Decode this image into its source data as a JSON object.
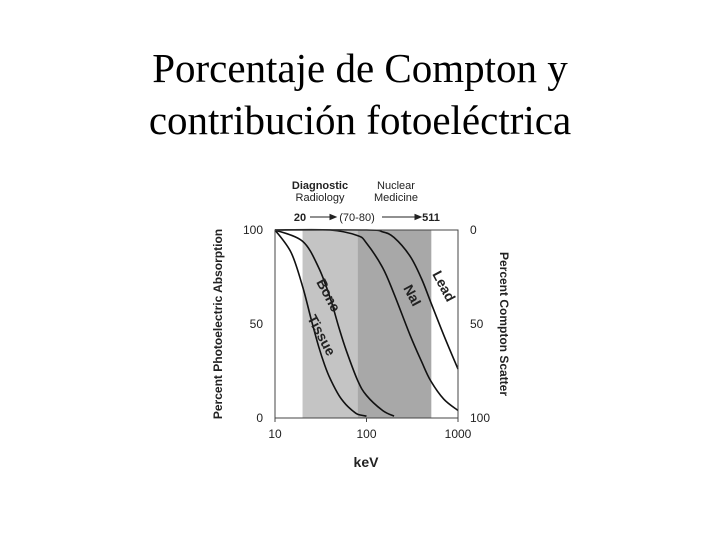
{
  "slide": {
    "title_line1": "Porcentaje de Compton y",
    "title_line2": "contribución fotoeléctrica"
  },
  "chart_data": {
    "type": "line",
    "xlabel": "keV",
    "ylabel_left": "Percent Photoelectric Absorption",
    "ylabel_right": "Percent Compton Scatter",
    "x_scale": "log",
    "xlim": [
      10,
      1000
    ],
    "ylim": [
      0,
      100
    ],
    "x_ticks": [
      "10",
      "100",
      "1000"
    ],
    "y_ticks_left": [
      "100",
      "50",
      "0"
    ],
    "y_ticks_right": [
      "0",
      "50",
      "100"
    ],
    "bands": [
      {
        "name_line1": "Diagnostic",
        "name_line2": "Radiology",
        "range": [
          20,
          80
        ],
        "color": "#c4c4c4"
      },
      {
        "name_line1": "Nuclear",
        "name_line2": "Medicine",
        "range": [
          80,
          511
        ],
        "color": "#a8a8a8"
      }
    ],
    "band_marks": {
      "left": "20",
      "middle": "(70-80)",
      "right": "511"
    },
    "series": [
      {
        "name": "Tissue",
        "x": [
          10,
          15,
          20,
          25,
          30,
          35,
          40,
          50,
          60,
          70,
          80,
          100
        ],
        "y": [
          100,
          88,
          70,
          52,
          38,
          28,
          21,
          12,
          7,
          4,
          2,
          1
        ]
      },
      {
        "name": "Bone",
        "x": [
          10,
          20,
          30,
          40,
          50,
          60,
          80,
          100,
          150,
          200
        ],
        "y": [
          100,
          94,
          80,
          64,
          48,
          36,
          20,
          12,
          4,
          1
        ]
      },
      {
        "name": "NaI",
        "x": [
          10,
          40,
          80,
          100,
          150,
          200,
          300,
          400,
          500,
          700,
          1000
        ],
        "y": [
          100,
          100,
          97,
          93,
          80,
          66,
          44,
          30,
          20,
          10,
          4
        ]
      },
      {
        "name": "Lead",
        "x": [
          10,
          100,
          150,
          200,
          300,
          400,
          500,
          700,
          1000
        ],
        "y": [
          100,
          100,
          99,
          96,
          86,
          74,
          62,
          44,
          26
        ]
      }
    ]
  }
}
